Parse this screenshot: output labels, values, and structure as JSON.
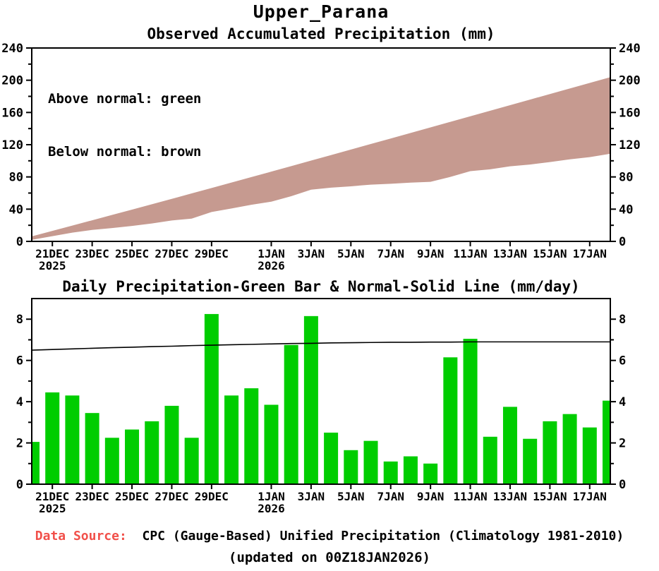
{
  "page": {
    "title": "Upper_Parana"
  },
  "footer": {
    "source_label": "Data Source:",
    "source_label_color": "#f1504a",
    "source_text": "CPC (Gauge-Based) Unified Precipitation (Climatology 1981-2010)",
    "updated": "(updated on 00Z18JAN2026)"
  },
  "chart_data": [
    {
      "type": "area",
      "title": "Observed Accumulated Precipitation (mm)",
      "legend": [
        "Above normal: green",
        "Below normal: brown"
      ],
      "legend_note": {
        "above_normal_color_name": "green",
        "below_normal_color_name": "brown"
      },
      "band_color": "#c69a90",
      "above_color": "#00cd00",
      "ylabel": "mm",
      "ylim": [
        0,
        240
      ],
      "yticks": [
        0,
        40,
        80,
        120,
        160,
        200,
        240
      ],
      "yminor_step": 20,
      "x": [
        "20DEC2025",
        "21DEC2025",
        "22DEC2025",
        "23DEC2025",
        "24DEC2025",
        "25DEC2025",
        "26DEC2025",
        "27DEC2025",
        "28DEC2025",
        "29DEC2025",
        "30DEC2025",
        "31DEC2025",
        "1JAN2026",
        "2JAN2026",
        "3JAN2026",
        "4JAN2026",
        "5JAN2026",
        "6JAN2026",
        "7JAN2026",
        "8JAN2026",
        "9JAN2026",
        "10JAN2026",
        "11JAN2026",
        "12JAN2026",
        "13JAN2026",
        "14JAN2026",
        "15JAN2026",
        "16JAN2026",
        "17JAN2026",
        "18JAN2026"
      ],
      "xticks": [
        {
          "day": 1,
          "label": "21DEC",
          "year": "2025"
        },
        {
          "day": 3,
          "label": "23DEC"
        },
        {
          "day": 5,
          "label": "25DEC"
        },
        {
          "day": 7,
          "label": "27DEC"
        },
        {
          "day": 9,
          "label": "29DEC"
        },
        {
          "day": 12,
          "label": "1JAN",
          "year": "2026"
        },
        {
          "day": 14,
          "label": "3JAN"
        },
        {
          "day": 16,
          "label": "5JAN"
        },
        {
          "day": 18,
          "label": "7JAN"
        },
        {
          "day": 20,
          "label": "9JAN"
        },
        {
          "day": 22,
          "label": "11JAN"
        },
        {
          "day": 24,
          "label": "13JAN"
        },
        {
          "day": 26,
          "label": "15JAN"
        },
        {
          "day": 28,
          "label": "17JAN"
        }
      ],
      "series": [
        {
          "name": "Observed accumulated",
          "values": [
            2.05,
            6.5,
            10.8,
            14.25,
            16.5,
            19.15,
            22.2,
            26.0,
            28.25,
            36.5,
            40.8,
            45.45,
            49.3,
            56.05,
            64.2,
            66.7,
            68.35,
            70.45,
            71.55,
            72.9,
            73.9,
            80.05,
            87.1,
            89.4,
            93.15,
            95.35,
            98.4,
            101.8,
            104.55,
            108.6
          ]
        },
        {
          "name": "Normal accumulated",
          "values": [
            6.5,
            13.03,
            19.59,
            26.18,
            32.8,
            39.44,
            46.11,
            52.8,
            59.52,
            66.26,
            73.02,
            79.8,
            86.6,
            93.42,
            100.25,
            107.1,
            113.96,
            120.83,
            127.71,
            134.59,
            141.48,
            148.37,
            155.27,
            162.17,
            169.07,
            175.97,
            182.87,
            189.77,
            196.67,
            203.57
          ]
        }
      ],
      "fill_rule": "brown band fills gap between observed (lower) and normal (upper) accumulation"
    },
    {
      "type": "bar",
      "title": "Daily Precipitation-Green Bar & Normal-Solid Line (mm/day)",
      "bar_color": "#00cd00",
      "line_color": "#000000",
      "ylabel": "mm/day",
      "ylim": [
        0,
        9
      ],
      "yticks": [
        0,
        2,
        4,
        6,
        8
      ],
      "yminor_step": 1,
      "categories": [
        "20DEC2025",
        "21DEC2025",
        "22DEC2025",
        "23DEC2025",
        "24DEC2025",
        "25DEC2025",
        "26DEC2025",
        "27DEC2025",
        "28DEC2025",
        "29DEC2025",
        "30DEC2025",
        "31DEC2025",
        "1JAN2026",
        "2JAN2026",
        "3JAN2026",
        "4JAN2026",
        "5JAN2026",
        "6JAN2026",
        "7JAN2026",
        "8JAN2026",
        "9JAN2026",
        "10JAN2026",
        "11JAN2026",
        "12JAN2026",
        "13JAN2026",
        "14JAN2026",
        "15JAN2026",
        "16JAN2026",
        "17JAN2026",
        "18JAN2026"
      ],
      "xticks": [
        {
          "day": 1,
          "label": "21DEC",
          "year": "2025"
        },
        {
          "day": 3,
          "label": "23DEC"
        },
        {
          "day": 5,
          "label": "25DEC"
        },
        {
          "day": 7,
          "label": "27DEC"
        },
        {
          "day": 9,
          "label": "29DEC"
        },
        {
          "day": 12,
          "label": "1JAN",
          "year": "2026"
        },
        {
          "day": 14,
          "label": "3JAN"
        },
        {
          "day": 16,
          "label": "5JAN"
        },
        {
          "day": 18,
          "label": "7JAN"
        },
        {
          "day": 20,
          "label": "9JAN"
        },
        {
          "day": 22,
          "label": "11JAN"
        },
        {
          "day": 24,
          "label": "13JAN"
        },
        {
          "day": 26,
          "label": "15JAN"
        },
        {
          "day": 28,
          "label": "17JAN"
        }
      ],
      "series": [
        {
          "name": "Daily observed precipitation (green bars)",
          "values": [
            2.05,
            4.45,
            4.3,
            3.45,
            2.25,
            2.65,
            3.05,
            3.8,
            2.25,
            8.25,
            4.3,
            4.65,
            3.85,
            6.75,
            8.15,
            2.5,
            1.65,
            2.1,
            1.1,
            1.35,
            1.0,
            6.15,
            7.05,
            2.3,
            3.75,
            2.2,
            3.05,
            3.4,
            2.75,
            4.05
          ]
        },
        {
          "name": "Daily normal precipitation (solid line)",
          "values": [
            6.5,
            6.53,
            6.56,
            6.59,
            6.62,
            6.64,
            6.67,
            6.69,
            6.72,
            6.74,
            6.76,
            6.78,
            6.8,
            6.82,
            6.83,
            6.85,
            6.86,
            6.87,
            6.88,
            6.88,
            6.89,
            6.89,
            6.9,
            6.9,
            6.9,
            6.9,
            6.9,
            6.9,
            6.9,
            6.9
          ]
        }
      ]
    }
  ]
}
